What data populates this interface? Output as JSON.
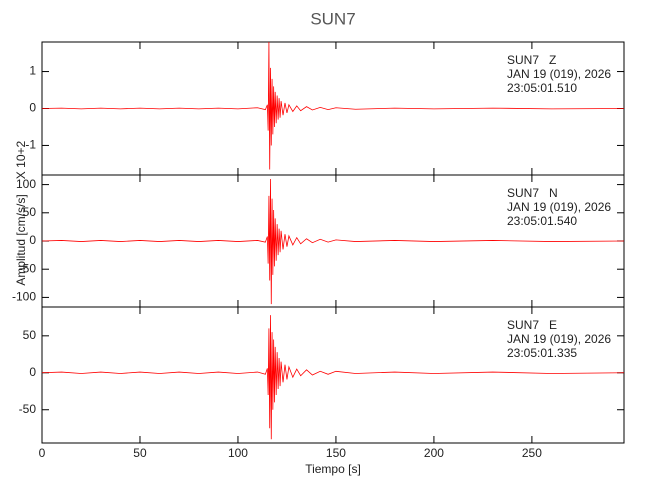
{
  "chart_data": [
    {
      "type": "line",
      "title": "SUN7",
      "y_multiplier": "X 10+2",
      "annotations": [
        "SUN7   Z",
        "JAN 19 (019), 2026",
        "23:05:01.510"
      ],
      "x": [
        0,
        10,
        20,
        30,
        40,
        50,
        60,
        70,
        80,
        90,
        100,
        110,
        114,
        115,
        115.4,
        115.8,
        116.2,
        116.6,
        117,
        117.4,
        117.8,
        118.2,
        118.6,
        119,
        119.5,
        120,
        120.5,
        121,
        121.5,
        122,
        123,
        124,
        125,
        126,
        128,
        130,
        132,
        135,
        138,
        142,
        146,
        150,
        160,
        180,
        200,
        230,
        260,
        297
      ],
      "values": [
        0,
        0.01,
        -0.01,
        0.01,
        -0.01,
        0.01,
        -0.01,
        0.01,
        -0.01,
        0.01,
        -0.01,
        0.02,
        -0.03,
        0.1,
        -0.6,
        1.8,
        -1.65,
        1.1,
        -1.0,
        0.8,
        -0.7,
        0.6,
        -0.5,
        0.45,
        -0.4,
        0.35,
        -0.3,
        0.28,
        -0.25,
        0.2,
        -0.18,
        0.15,
        -0.12,
        0.1,
        -0.08,
        0.07,
        -0.06,
        0.05,
        -0.04,
        0.03,
        -0.03,
        0.02,
        -0.02,
        0.01,
        -0.01,
        0.01,
        -0.01,
        0
      ],
      "color": "#ff0000",
      "xlim": [
        0,
        297
      ],
      "xticks": [
        0,
        50,
        100,
        150,
        200,
        250
      ],
      "ylim": [
        -1.8,
        1.8
      ],
      "yticks": [
        -1,
        0,
        1
      ]
    },
    {
      "type": "line",
      "ylabel": "Amplitud [cm/s/s]",
      "annotations": [
        "SUN7   N",
        "JAN 19 (019), 2026",
        "23:05:01.540"
      ],
      "x": [
        0,
        10,
        20,
        30,
        40,
        50,
        60,
        70,
        80,
        90,
        100,
        110,
        114,
        115,
        115.4,
        115.8,
        116.2,
        116.6,
        117,
        117.4,
        117.8,
        118.2,
        118.6,
        119,
        119.5,
        120,
        120.5,
        121,
        121.5,
        122,
        123,
        124,
        125,
        126,
        128,
        130,
        132,
        135,
        138,
        142,
        146,
        150,
        160,
        180,
        200,
        230,
        260,
        297
      ],
      "values": [
        0,
        1,
        -1,
        1,
        -1,
        1,
        -1,
        1,
        -1,
        1,
        -1,
        1,
        -2,
        8,
        -40,
        80,
        -70,
        110,
        -112,
        75,
        -60,
        55,
        -45,
        40,
        -35,
        30,
        -25,
        22,
        -20,
        18,
        -15,
        12,
        -10,
        9,
        -7,
        6,
        -5,
        4,
        -3,
        3,
        -2,
        2,
        -1,
        1,
        -1,
        1,
        -1,
        0
      ],
      "color": "#ff0000",
      "xlim": [
        0,
        297
      ],
      "xticks": [
        0,
        50,
        100,
        150,
        200,
        250
      ],
      "ylim": [
        -117,
        117
      ],
      "yticks": [
        -100,
        -50,
        0,
        50,
        100
      ]
    },
    {
      "type": "line",
      "xlabel": "Tiempo [s]",
      "annotations": [
        "SUN7   E",
        "JAN 19 (019), 2026",
        "23:05:01.335"
      ],
      "x": [
        0,
        10,
        20,
        30,
        40,
        50,
        60,
        70,
        80,
        90,
        100,
        110,
        114,
        115,
        115.4,
        115.8,
        116.2,
        116.6,
        117,
        117.4,
        117.8,
        118.2,
        118.6,
        119,
        119.5,
        120,
        120.5,
        121,
        121.5,
        122,
        123,
        124,
        125,
        126,
        128,
        130,
        132,
        135,
        138,
        142,
        146,
        150,
        160,
        180,
        200,
        230,
        260,
        297
      ],
      "values": [
        0,
        1,
        -1,
        1,
        -1,
        1,
        -1,
        1,
        -1,
        1,
        -1,
        1,
        -2,
        6,
        -30,
        60,
        -75,
        78,
        -90,
        55,
        -50,
        45,
        -40,
        35,
        -30,
        28,
        -22,
        20,
        -18,
        15,
        -13,
        11,
        -9,
        8,
        -6,
        5,
        -4,
        4,
        -3,
        2,
        -2,
        2,
        -1,
        1,
        -1,
        1,
        -1,
        0
      ],
      "color": "#ff0000",
      "xlim": [
        0,
        297
      ],
      "xticks": [
        0,
        50,
        100,
        150,
        200,
        250
      ],
      "ylim": [
        -95,
        89
      ],
      "yticks": [
        -50,
        0,
        50
      ]
    }
  ]
}
